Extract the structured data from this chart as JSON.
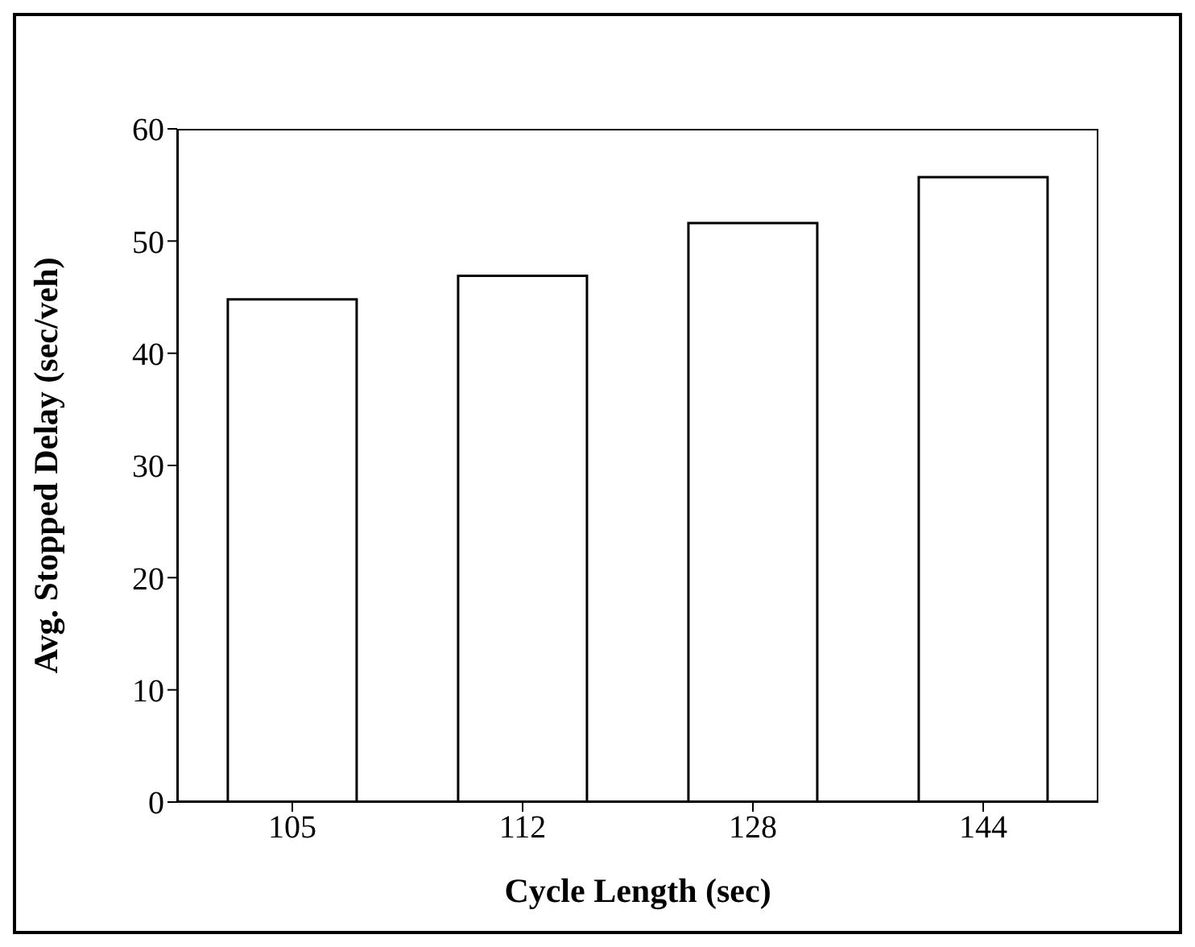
{
  "chart_data": {
    "type": "bar",
    "xlabel": "Cycle Length (sec)",
    "ylabel": "Avg. Stopped Delay (sec/veh)",
    "categories": [
      "105",
      "112",
      "128",
      "144"
    ],
    "values": [
      44.8,
      46.9,
      51.6,
      55.7
    ],
    "color": "#ffffff",
    "ylim": [
      0,
      60
    ],
    "yticks": [
      0,
      10,
      20,
      30,
      40,
      50,
      60
    ]
  }
}
